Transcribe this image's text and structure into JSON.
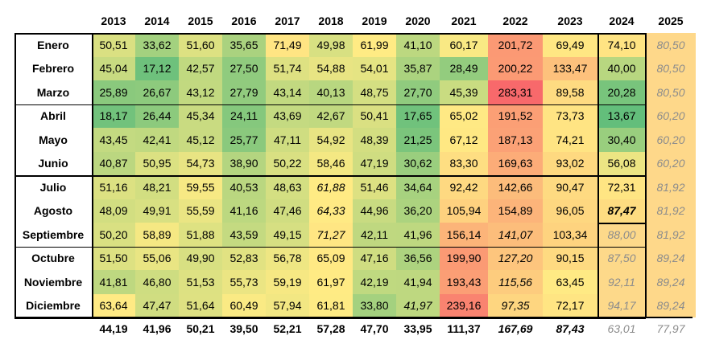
{
  "years": [
    "2013",
    "2014",
    "2015",
    "2016",
    "2017",
    "2018",
    "2019",
    "2020",
    "2021",
    "2022",
    "2023",
    "2024",
    "2025"
  ],
  "months": [
    "Enero",
    "Febrero",
    "Marzo",
    "Abril",
    "Mayo",
    "Junio",
    "Julio",
    "Agosto",
    "Septiembre",
    "Octubre",
    "Noviembre",
    "Diciembre"
  ],
  "values": [
    [
      "50,51",
      "33,62",
      "51,60",
      "35,65",
      "71,49",
      "49,98",
      "61,99",
      "41,10",
      "60,17",
      "201,72",
      "69,49",
      "74,10",
      "80,50"
    ],
    [
      "45,04",
      "17,12",
      "42,57",
      "27,50",
      "51,74",
      "54,88",
      "54,01",
      "35,87",
      "28,49",
      "200,22",
      "133,47",
      "40,00",
      "80,50"
    ],
    [
      "25,89",
      "26,67",
      "43,12",
      "27,79",
      "43,14",
      "40,13",
      "48,75",
      "27,70",
      "45,39",
      "283,31",
      "89,58",
      "20,28",
      "80,50"
    ],
    [
      "18,17",
      "26,44",
      "45,34",
      "24,11",
      "43,69",
      "42,67",
      "50,41",
      "17,65",
      "65,02",
      "191,52",
      "73,73",
      "13,67",
      "60,20"
    ],
    [
      "43,45",
      "42,41",
      "45,12",
      "25,77",
      "47,11",
      "54,92",
      "48,39",
      "21,25",
      "67,12",
      "187,13",
      "74,21",
      "30,40",
      "60,20"
    ],
    [
      "40,87",
      "50,95",
      "54,73",
      "38,90",
      "50,22",
      "58,46",
      "47,19",
      "30,62",
      "83,30",
      "169,63",
      "93,02",
      "56,08",
      "60,20"
    ],
    [
      "51,16",
      "48,21",
      "59,55",
      "40,53",
      "48,63",
      "61,88",
      "51,46",
      "34,64",
      "92,42",
      "142,66",
      "90,47",
      "72,31",
      "81,92"
    ],
    [
      "48,09",
      "49,91",
      "55,59",
      "41,16",
      "47,46",
      "64,33",
      "44,96",
      "36,20",
      "105,94",
      "154,89",
      "96,05",
      "87,47",
      "81,92"
    ],
    [
      "50,20",
      "58,89",
      "51,88",
      "43,59",
      "49,15",
      "71,27",
      "42,11",
      "41,96",
      "156,14",
      "141,07",
      "103,34",
      "88,00",
      "81,92"
    ],
    [
      "51,50",
      "55,06",
      "49,90",
      "52,83",
      "56,78",
      "65,09",
      "47,16",
      "36,56",
      "199,90",
      "127,20",
      "90,15",
      "87,50",
      "89,24"
    ],
    [
      "41,81",
      "46,80",
      "51,53",
      "55,73",
      "59,19",
      "61,97",
      "42,19",
      "41,94",
      "193,43",
      "115,56",
      "63,45",
      "92,11",
      "89,24"
    ],
    [
      "63,64",
      "47,47",
      "51,64",
      "60,49",
      "57,94",
      "61,81",
      "33,80",
      "41,97",
      "239,16",
      "97,35",
      "72,17",
      "94,17",
      "89,24"
    ]
  ],
  "averages": [
    "44,19",
    "41,96",
    "50,21",
    "39,50",
    "52,21",
    "57,28",
    "47,70",
    "33,95",
    "111,37",
    "167,69",
    "87,43",
    "63,01",
    "77,97"
  ],
  "italic_cells": [
    [
      6,
      5
    ],
    [
      7,
      5
    ],
    [
      8,
      5
    ],
    [
      11,
      7
    ],
    [
      8,
      9
    ],
    [
      9,
      9
    ],
    [
      10,
      9
    ],
    [
      11,
      9
    ],
    [
      7,
      11
    ]
  ],
  "bold_cells": [
    [
      7,
      11
    ]
  ],
  "estimated_cells": [
    [
      8,
      11
    ],
    [
      9,
      11
    ],
    [
      10,
      11
    ],
    [
      11,
      11
    ]
  ],
  "estimated_column": 12,
  "italic_averages": [
    9,
    10
  ],
  "gray_averages": [
    11,
    12
  ],
  "colors": {
    "low": "#63be7b",
    "mid": "#ffeb84",
    "high": "#f8696b",
    "estimate_fill": "#fdd98a",
    "estimate_text": "#8c8c8c"
  }
}
